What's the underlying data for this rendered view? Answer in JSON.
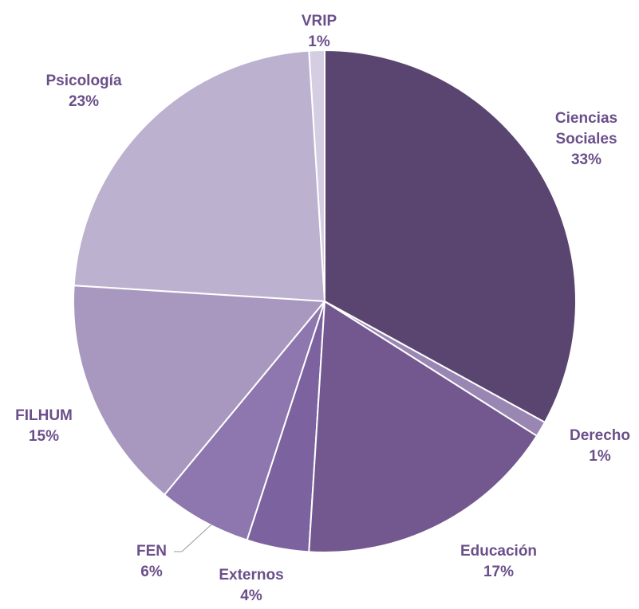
{
  "chart_data": {
    "type": "pie",
    "categories": [
      "Ciencias Sociales",
      "Derecho",
      "Educación",
      "Externos",
      "FEN",
      "FILHUM",
      "Psicología",
      "VRIP"
    ],
    "values": [
      33,
      1,
      17,
      4,
      6,
      15,
      23,
      1
    ],
    "value_labels": [
      "33%",
      "1%",
      "17%",
      "4%",
      "6%",
      "15%",
      "23%",
      "1%"
    ],
    "colors": [
      "#5a4570",
      "#9a86b2",
      "#735890",
      "#7d62a0",
      "#8e76ae",
      "#a898bf",
      "#bdb1d0",
      "#d5cee2"
    ]
  }
}
